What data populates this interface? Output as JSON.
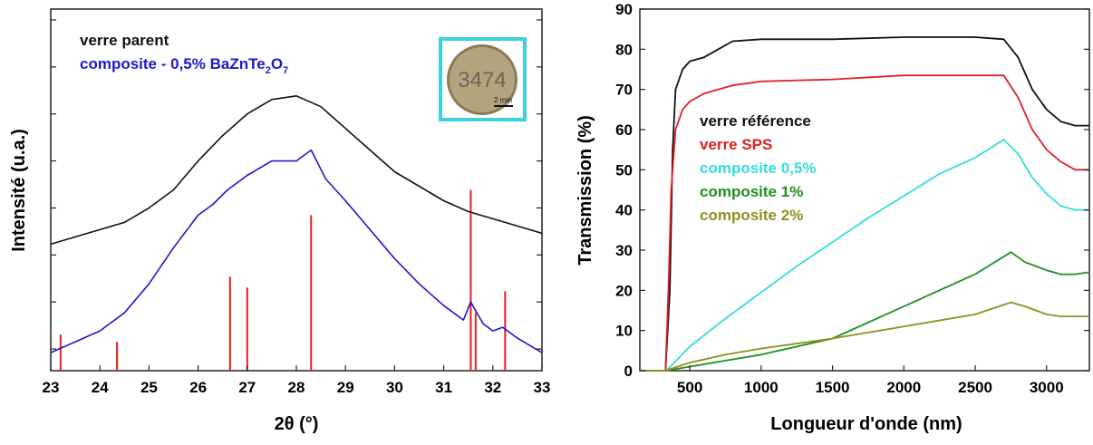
{
  "chart_data": [
    {
      "type": "line",
      "xlabel": "2θ (°)",
      "ylabel": "Intensité (u.a.)",
      "xlim": [
        23,
        33
      ],
      "ylim": [
        0,
        100
      ],
      "x_ticks": [
        "23",
        "24",
        "25",
        "26",
        "27",
        "28",
        "29",
        "30",
        "31",
        "32",
        "33"
      ],
      "legend_placement": "top-left",
      "series": [
        {
          "name": "verre parent",
          "color": "#111111",
          "x": [
            23,
            23.5,
            24,
            24.5,
            25,
            25.5,
            26,
            26.5,
            27,
            27.5,
            28,
            28.5,
            29,
            29.5,
            30,
            30.5,
            31,
            31.5,
            32,
            32.5,
            33
          ],
          "y": [
            35,
            37,
            39,
            41,
            45,
            50,
            58,
            65,
            71,
            75,
            76,
            73,
            67,
            61,
            55,
            51,
            47,
            44,
            42,
            40,
            38
          ]
        },
        {
          "name": "composite - 0,5% BaZnTe2O7",
          "color": "#1a1acc",
          "x": [
            23,
            23.5,
            24,
            24.5,
            25,
            25.5,
            26,
            26.3,
            26.6,
            27,
            27.5,
            28,
            28.3,
            28.6,
            29,
            29.5,
            30,
            30.5,
            31,
            31.4,
            31.55,
            31.8,
            32,
            32.2,
            32.5,
            33
          ],
          "y": [
            5,
            8,
            11,
            16,
            24,
            34,
            43,
            46,
            50,
            54,
            58,
            58,
            61,
            53,
            47,
            39,
            31,
            24,
            18,
            14,
            19,
            13,
            11,
            12,
            9,
            5
          ]
        }
      ],
      "reference_peaks": {
        "color": "#e02020",
        "x": [
          23.2,
          24.35,
          26.65,
          27.0,
          28.3,
          31.55,
          31.65,
          32.25
        ],
        "intensity": [
          10,
          8,
          26,
          23,
          43,
          50,
          16,
          22
        ]
      },
      "inset": {
        "text": "3474",
        "scale_label": "2 mm"
      }
    },
    {
      "type": "line",
      "xlabel": "Longueur d'onde (nm)",
      "ylabel": "Transmission (%)",
      "xlim": [
        150,
        3300
      ],
      "ylim": [
        0,
        90
      ],
      "x_ticks": [
        500,
        1000,
        1500,
        2000,
        2500,
        3000
      ],
      "y_ticks": [
        0,
        10,
        20,
        30,
        40,
        50,
        60,
        70,
        80,
        90
      ],
      "legend_placement": "middle-left",
      "series": [
        {
          "name": "verre référence",
          "color": "#111111",
          "x": [
            150,
            300,
            330,
            360,
            380,
            400,
            450,
            500,
            600,
            700,
            800,
            1000,
            1500,
            2000,
            2500,
            2700,
            2800,
            2900,
            3000,
            3100,
            3200,
            3300
          ],
          "y": [
            0,
            0,
            0,
            20,
            55,
            70,
            75,
            77,
            78,
            80,
            82,
            82.5,
            82.5,
            83,
            83,
            82.5,
            78,
            70,
            65,
            62,
            61,
            61
          ]
        },
        {
          "name": "verre SPS",
          "color": "#e02020",
          "x": [
            150,
            300,
            330,
            350,
            370,
            400,
            450,
            500,
            600,
            800,
            1000,
            1500,
            2000,
            2500,
            2700,
            2800,
            2900,
            3000,
            3100,
            3200,
            3300
          ],
          "y": [
            0,
            0,
            0,
            20,
            45,
            60,
            65,
            67,
            69,
            71,
            72,
            72.5,
            73.5,
            73.5,
            73.5,
            68,
            60,
            55,
            52,
            50,
            50
          ]
        },
        {
          "name": "composite 0,5%",
          "color": "#33dddd",
          "x": [
            150,
            330,
            350,
            500,
            750,
            1000,
            1250,
            1500,
            1750,
            2000,
            2250,
            2500,
            2700,
            2800,
            2900,
            3000,
            3100,
            3200,
            3300
          ],
          "y": [
            0,
            0,
            0.5,
            6,
            13,
            19.5,
            26,
            32,
            38,
            43.5,
            49,
            53,
            57.5,
            54,
            48,
            44,
            41,
            40,
            40
          ]
        },
        {
          "name": "composite 1%",
          "color": "#1f8f1f",
          "x": [
            150,
            330,
            500,
            750,
            1000,
            1500,
            2000,
            2500,
            2750,
            2850,
            3000,
            3100,
            3200,
            3300
          ],
          "y": [
            0,
            0,
            1,
            2.5,
            4,
            8,
            16,
            24,
            29.5,
            27,
            25,
            24,
            24,
            24.5
          ]
        },
        {
          "name": "composite 2%",
          "color": "#8f8f1f",
          "x": [
            150,
            330,
            500,
            750,
            1000,
            1500,
            2000,
            2500,
            2750,
            2850,
            3000,
            3100,
            3200,
            3300
          ],
          "y": [
            0,
            0,
            2,
            4,
            5.5,
            8,
            11,
            14,
            17,
            16,
            14,
            13.5,
            13.5,
            13.5
          ]
        }
      ]
    }
  ]
}
